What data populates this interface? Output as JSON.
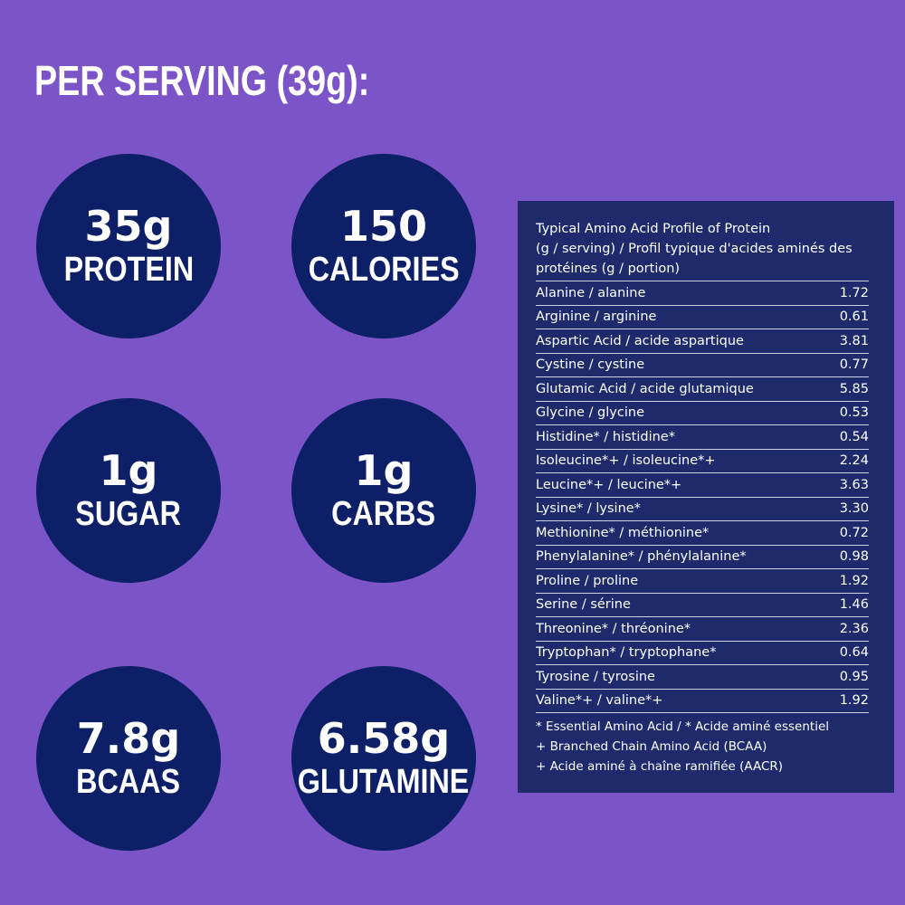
{
  "headline": "PER SERVING (39g):",
  "stats": [
    {
      "value": "35g",
      "label": "PROTEIN"
    },
    {
      "value": "150",
      "label": "CALORIES"
    },
    {
      "value": "1g",
      "label": "SUGAR"
    },
    {
      "value": "1g",
      "label": "CARBS"
    },
    {
      "value": "7.8g",
      "label": "BCAAS"
    },
    {
      "value": "6.58g",
      "label": "GLUTAMINE"
    }
  ],
  "panel": {
    "title_line1": "Typical Amino Acid Profile of Protein",
    "title_line2": "(g / serving) / Profil typique d'acides aminés des",
    "title_line3": "protéines (g / portion)",
    "rows": [
      {
        "name": "Alanine / alanine",
        "value": "1.72"
      },
      {
        "name": "Arginine / arginine",
        "value": "0.61"
      },
      {
        "name": "Aspartic Acid / acide aspartique",
        "value": "3.81"
      },
      {
        "name": "Cystine / cystine",
        "value": "0.77"
      },
      {
        "name": "Glutamic Acid / acide glutamique",
        "value": "5.85"
      },
      {
        "name": "Glycine / glycine",
        "value": "0.53"
      },
      {
        "name": "Histidine* / histidine*",
        "value": "0.54"
      },
      {
        "name": "Isoleucine*+ / isoleucine*+",
        "value": "2.24"
      },
      {
        "name": "Leucine*+ / leucine*+",
        "value": "3.63"
      },
      {
        "name": "Lysine* / lysine*",
        "value": "3.30"
      },
      {
        "name": "Methionine* / méthionine*",
        "value": "0.72"
      },
      {
        "name": "Phenylalanine* / phénylalanine*",
        "value": "0.98"
      },
      {
        "name": "Proline / proline",
        "value": "1.92"
      },
      {
        "name": "Serine / sérine",
        "value": "1.46"
      },
      {
        "name": "Threonine* / thréonine*",
        "value": "2.36"
      },
      {
        "name": "Tryptophan* / tryptophane*",
        "value": "0.64"
      },
      {
        "name": "Tyrosine / tyrosine",
        "value": "0.95"
      },
      {
        "name": "Valine*+ / valine*+",
        "value": "1.92"
      }
    ],
    "notes": [
      "* Essential Amino Acid / * Acide aminé essentiel",
      "+ Branched Chain Amino Acid (BCAA)",
      "+ Acide aminé à chaîne ramifiée (AACR)"
    ]
  },
  "colors": {
    "background": "#7b55c7",
    "circle": "#0d1f66",
    "panel": "#1e2a6b"
  }
}
